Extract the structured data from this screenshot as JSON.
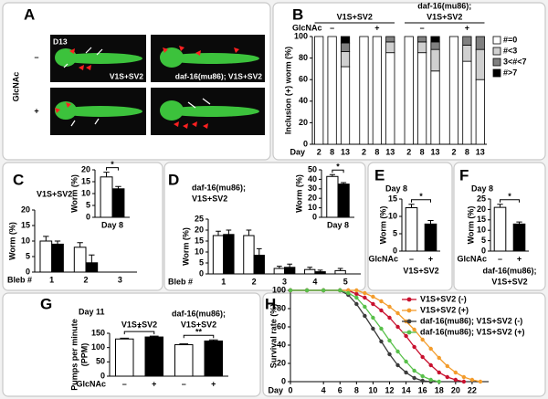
{
  "image_panel": {
    "panel": "A",
    "side_label": "GlcNAc",
    "rows": [
      "–",
      "+"
    ],
    "timepoint": "D13",
    "captions": [
      "V1S+SV2",
      "daf-16(mu86); V1S+SV2"
    ]
  },
  "chart_data": [
    {
      "panel": "B",
      "type": "stacked_bar",
      "ylabel": "Inclusion (+) worm (%)",
      "xlabel": "Day",
      "treatment_label": "GlcNAc",
      "treatments": [
        "–",
        "+",
        "–",
        "+"
      ],
      "groups": [
        [
          "V1S+SV2"
        ],
        [
          "daf-16(mu86);",
          "V1S+SV2"
        ]
      ],
      "categories": [
        "2",
        "8",
        "13",
        "2",
        "8",
        "13",
        "2",
        "8",
        "13",
        "2",
        "8",
        "13"
      ],
      "series": [
        {
          "name": "#=0",
          "color": "#ffffff",
          "values": [
            100,
            100,
            72,
            100,
            100,
            85,
            100,
            85,
            68,
            100,
            77,
            60
          ]
        },
        {
          "name": "#<3",
          "color": "#d0d0d0",
          "values": [
            0,
            0,
            14,
            0,
            0,
            10,
            0,
            10,
            20,
            0,
            15,
            28
          ]
        },
        {
          "name": "3<#<7",
          "color": "#808080",
          "values": [
            0,
            0,
            8,
            0,
            0,
            5,
            0,
            5,
            7,
            0,
            8,
            12
          ]
        },
        {
          "name": "#>7",
          "color": "#000000",
          "values": [
            0,
            0,
            6,
            0,
            0,
            0,
            0,
            0,
            5,
            0,
            0,
            0
          ]
        }
      ],
      "ylim": [
        0,
        100
      ],
      "yticks": [
        0,
        20,
        40,
        60,
        80,
        100
      ]
    },
    {
      "panel": "C",
      "type": "bar",
      "title": "V1S+SV2",
      "ylabel": "Worm (%)",
      "xlabel": "Bleb #",
      "categories": [
        "1",
        "2",
        "3"
      ],
      "series": [
        {
          "color": "#ffffff",
          "values": [
            10,
            8,
            null
          ],
          "errors": [
            1.5,
            1.5,
            null
          ]
        },
        {
          "color": "#000000",
          "values": [
            9,
            3,
            null
          ],
          "errors": [
            1,
            2.5,
            null
          ]
        }
      ],
      "ylim": [
        0,
        20
      ],
      "yticks": [
        0,
        5,
        10,
        15,
        20
      ]
    },
    {
      "type": "bar",
      "ylabel": "Worm (%)",
      "categories": [
        "Day 8"
      ],
      "series": [
        {
          "color": "#ffffff",
          "values": [
            17
          ],
          "errors": [
            2
          ]
        },
        {
          "color": "#000000",
          "values": [
            12
          ],
          "errors": [
            1
          ]
        }
      ],
      "ylim": [
        0,
        20
      ],
      "yticks": [
        0,
        5,
        10,
        15,
        20
      ],
      "annotations": [
        "*"
      ]
    },
    {
      "panel": "D",
      "type": "bar",
      "title": [
        "daf-16(mu86);",
        "V1S+SV2"
      ],
      "ylabel": "Worm (%)",
      "xlabel": "Bleb #",
      "categories": [
        "1",
        "2",
        "3",
        "4",
        "5"
      ],
      "series": [
        {
          "color": "#ffffff",
          "values": [
            17.5,
            17.5,
            2.5,
            2,
            1.5
          ],
          "errors": [
            2,
            2.5,
            1,
            1,
            1
          ]
        },
        {
          "color": "#000000",
          "values": [
            18,
            8.5,
            3,
            1,
            null
          ],
          "errors": [
            2,
            3,
            1.5,
            0.7,
            null
          ]
        }
      ],
      "ylim": [
        0,
        25
      ],
      "yticks": [
        0,
        5,
        10,
        15,
        20,
        25
      ]
    },
    {
      "type": "bar",
      "ylabel": "Worm (%)",
      "categories": [
        "Day 8"
      ],
      "series": [
        {
          "color": "#ffffff",
          "values": [
            43
          ],
          "errors": [
            2
          ]
        },
        {
          "color": "#000000",
          "values": [
            35
          ],
          "errors": [
            1.5
          ]
        }
      ],
      "ylim": [
        0,
        50
      ],
      "yticks": [
        0,
        10,
        20,
        30,
        40,
        50
      ],
      "annotations": [
        "*"
      ]
    },
    {
      "panel": "E",
      "type": "bar",
      "title": "Day 8",
      "ylabel": "Worm (%)",
      "xlabel": "GlcNAc",
      "categories": [
        "–",
        "+"
      ],
      "values": [
        12.5,
        7.8
      ],
      "errors": [
        1,
        1
      ],
      "colors": [
        "#ffffff",
        "#000000"
      ],
      "groups": [
        [
          "V1S+SV2"
        ]
      ],
      "ylim": [
        0,
        15
      ],
      "yticks": [
        0,
        5,
        10,
        15
      ],
      "annotations": [
        "*"
      ]
    },
    {
      "panel": "F",
      "type": "bar",
      "title": "Day 8",
      "ylabel": "Worm (%)",
      "xlabel": "GlcNAc",
      "categories": [
        "–",
        "+"
      ],
      "values": [
        21,
        13
      ],
      "errors": [
        1.5,
        1
      ],
      "colors": [
        "#ffffff",
        "#000000"
      ],
      "groups": [
        [
          "daf-16(mu86);",
          "V1S+SV2"
        ]
      ],
      "ylim": [
        0,
        25
      ],
      "yticks": [
        0,
        5,
        10,
        15,
        20,
        25
      ],
      "annotations": [
        "*"
      ]
    },
    {
      "panel": "G",
      "type": "bar",
      "title": "Day 11",
      "ylabel": [
        "Pumps per minute",
        "(PPM)"
      ],
      "xlabel": "GlcNAc",
      "categories": [
        "–",
        "+",
        "–",
        "+"
      ],
      "values": [
        130,
        137,
        110,
        123
      ],
      "errors": [
        3,
        3,
        3,
        4
      ],
      "colors": [
        "#ffffff",
        "#000000",
        "#ffffff",
        "#000000"
      ],
      "groups": [
        [
          "V1S+SV2"
        ],
        [
          "daf-16(mu86);",
          "V1S+SV2"
        ]
      ],
      "annotations": [
        "*",
        "**"
      ],
      "ylim": [
        0,
        150
      ],
      "yticks": [
        0,
        50,
        100,
        150
      ]
    },
    {
      "panel": "H",
      "type": "line",
      "ylabel": "Survival rate (%)",
      "xlabel": "Day",
      "series": [
        {
          "name": "V1S+SV2 (-)",
          "color": "#c8102e",
          "x": [
            0,
            2,
            4,
            6,
            7,
            8,
            9,
            10,
            11,
            12,
            13,
            14,
            15,
            16,
            17,
            18,
            19,
            20,
            21
          ],
          "values": [
            100,
            100,
            100,
            100,
            100,
            96,
            92,
            85,
            78,
            70,
            60,
            50,
            38,
            27,
            18,
            10,
            5,
            2,
            0
          ]
        },
        {
          "name": "V1S+SV2 (+)",
          "color": "#f39c2b",
          "x": [
            0,
            2,
            4,
            6,
            7,
            8,
            9,
            10,
            11,
            12,
            13,
            14,
            15,
            16,
            17,
            18,
            19,
            20,
            21,
            22,
            23
          ],
          "values": [
            100,
            100,
            100,
            100,
            100,
            100,
            97,
            93,
            88,
            82,
            75,
            66,
            57,
            46,
            36,
            26,
            17,
            10,
            5,
            2,
            0
          ]
        },
        {
          "name": "daf-16(mu86); V1S+SV2 (-)",
          "color": "#3a3a3a",
          "x": [
            0,
            2,
            4,
            6,
            7,
            8,
            9,
            10,
            11,
            12,
            13,
            14,
            15,
            16,
            17
          ],
          "values": [
            100,
            100,
            100,
            100,
            95,
            85,
            72,
            58,
            44,
            30,
            18,
            10,
            4,
            1,
            0
          ]
        },
        {
          "name": "daf-16(mu86); V1S+SV2 (+)",
          "color": "#58c04a",
          "x": [
            0,
            2,
            4,
            6,
            7,
            8,
            9,
            10,
            11,
            12,
            13,
            14,
            15,
            16,
            17,
            18
          ],
          "values": [
            100,
            100,
            100,
            100,
            97,
            92,
            82,
            70,
            58,
            45,
            33,
            22,
            12,
            6,
            2,
            0
          ]
        }
      ],
      "xlim": [
        0,
        24
      ],
      "xticks": [
        0,
        4,
        6,
        8,
        10,
        12,
        14,
        16,
        18,
        20,
        22
      ],
      "ylim": [
        0,
        100
      ],
      "yticks": [
        0,
        20,
        40,
        60,
        80,
        100
      ]
    }
  ]
}
